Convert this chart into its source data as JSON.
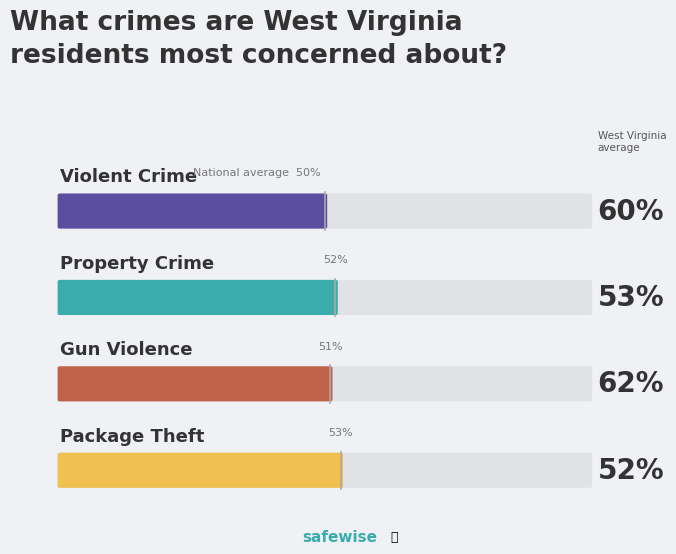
{
  "title": "What crimes are West Virginia\nresidents most concerned about?",
  "categories": [
    "Violent Crime",
    "Property Crime",
    "Gun Violence",
    "Package Theft"
  ],
  "state_values": [
    60,
    53,
    62,
    52
  ],
  "national_values": [
    50,
    52,
    51,
    53
  ],
  "bar_colors": [
    "#5b4ea0",
    "#3aacac",
    "#c0614a",
    "#f0c050"
  ],
  "bg_color": "#eff1f5",
  "bar_bg_color": "#e0e2e6",
  "state_label": "West Virginia\naverage",
  "bar_max": 100,
  "state_value_fontsize": 20,
  "category_fontsize": 13,
  "national_avg_fontsize": 8,
  "safewise_color": "#3aacac",
  "title_fontsize": 19,
  "title_color": "#333333",
  "category_color": "#333333",
  "value_color": "#333333",
  "national_label_color": "#777777",
  "nat_line_color": "#aaaaaa"
}
